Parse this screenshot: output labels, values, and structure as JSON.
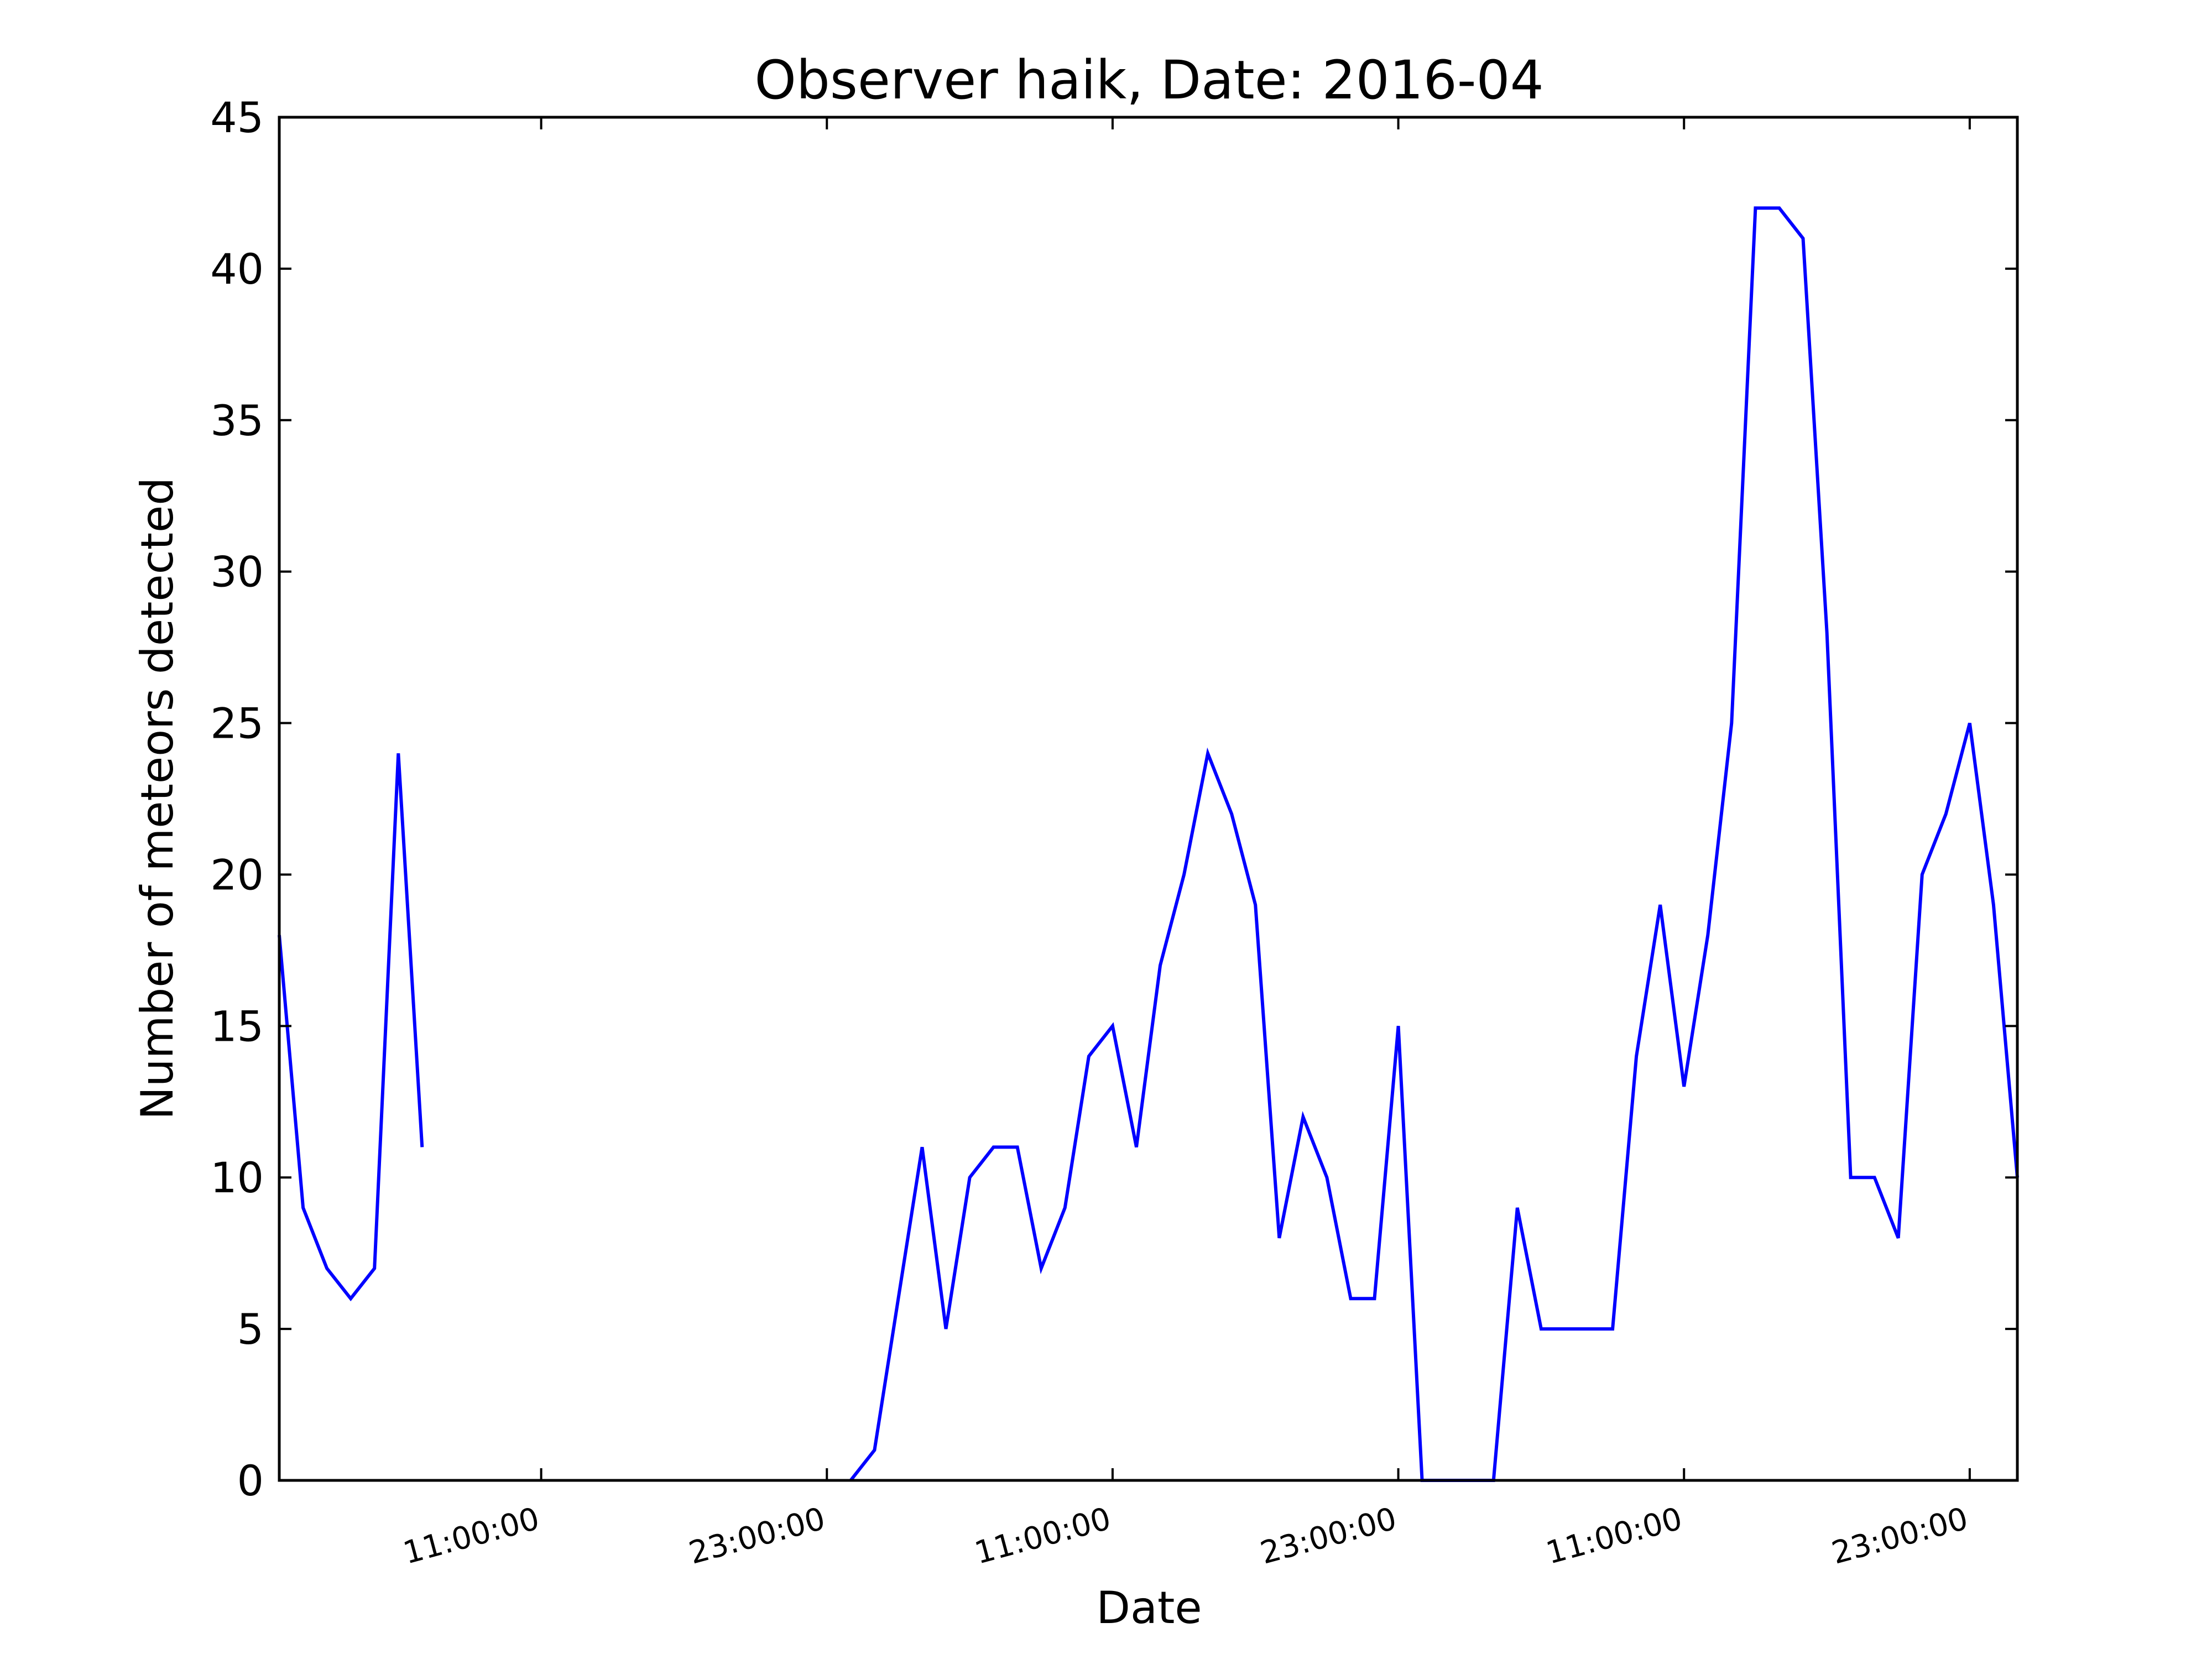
{
  "chart_data": {
    "type": "line",
    "title": "Observer haik, Date: 2016-04",
    "xlabel": "Date",
    "ylabel": "Number of meteors detected",
    "ylim": [
      0,
      45
    ],
    "yticks": [
      0,
      5,
      10,
      15,
      20,
      25,
      30,
      35,
      40,
      45
    ],
    "xlim_hours": [
      0,
      73
    ],
    "xticks": [
      {
        "hour": 11,
        "label": "11:00:00"
      },
      {
        "hour": 23,
        "label": "23:00:00"
      },
      {
        "hour": 35,
        "label": "11:00:00"
      },
      {
        "hour": 47,
        "label": "23:00:00"
      },
      {
        "hour": 59,
        "label": "11:00:00"
      },
      {
        "hour": 71,
        "label": "23:00:00"
      }
    ],
    "grid": false,
    "series": [
      {
        "color": "#0000ff",
        "segments": [
          [
            [
              0,
              18
            ],
            [
              1,
              9
            ],
            [
              2,
              7
            ],
            [
              3,
              6
            ],
            [
              4,
              7
            ],
            [
              5,
              24
            ],
            [
              6,
              11
            ]
          ],
          [
            [
              24,
              0
            ],
            [
              25,
              1
            ],
            [
              26,
              6
            ],
            [
              27,
              11
            ],
            [
              28,
              5
            ],
            [
              29,
              10
            ],
            [
              30,
              11
            ],
            [
              31,
              11
            ],
            [
              32,
              7
            ],
            [
              33,
              9
            ],
            [
              34,
              14
            ],
            [
              35,
              15
            ],
            [
              36,
              11
            ],
            [
              37,
              17
            ],
            [
              38,
              20
            ],
            [
              39,
              24
            ],
            [
              40,
              22
            ],
            [
              41,
              19
            ],
            [
              42,
              8
            ],
            [
              43,
              12
            ],
            [
              44,
              10
            ],
            [
              45,
              6
            ],
            [
              46,
              6
            ],
            [
              47,
              15
            ],
            [
              48,
              0
            ],
            [
              49,
              0
            ],
            [
              50,
              0
            ],
            [
              51,
              0
            ],
            [
              52,
              9
            ],
            [
              53,
              5
            ],
            [
              54,
              5
            ],
            [
              55,
              5
            ],
            [
              56,
              5
            ],
            [
              57,
              14
            ],
            [
              58,
              19
            ],
            [
              59,
              13
            ],
            [
              60,
              18
            ],
            [
              61,
              25
            ],
            [
              62,
              42
            ],
            [
              63,
              42
            ],
            [
              64,
              41
            ],
            [
              65,
              28
            ],
            [
              66,
              10
            ],
            [
              67,
              10
            ],
            [
              68,
              8
            ],
            [
              69,
              20
            ],
            [
              70,
              22
            ],
            [
              71,
              25
            ],
            [
              72,
              19
            ],
            [
              73,
              10
            ]
          ]
        ]
      }
    ]
  }
}
